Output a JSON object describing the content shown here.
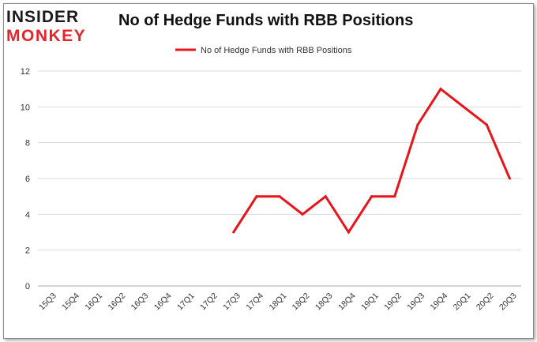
{
  "logo": {
    "line1": "INSIDER",
    "line2": "MONKEY",
    "color_dark": "#1a1a1a",
    "color_red": "#e8242b"
  },
  "chart_data": {
    "type": "line",
    "title": "No of Hedge Funds with RBB Positions",
    "categories": [
      "15Q3",
      "15Q4",
      "16Q1",
      "16Q2",
      "16Q3",
      "16Q4",
      "17Q1",
      "17Q2",
      "17Q3",
      "17Q4",
      "18Q1",
      "18Q2",
      "18Q3",
      "18Q4",
      "19Q1",
      "19Q2",
      "19Q3",
      "19Q4",
      "20Q1",
      "20Q2",
      "20Q3"
    ],
    "series": [
      {
        "name": "No of Hedge Funds with RBB Positions",
        "color": "#e8141b",
        "values": [
          null,
          null,
          null,
          null,
          null,
          null,
          null,
          null,
          3,
          5,
          5,
          4,
          5,
          3,
          5,
          5,
          9,
          11,
          10,
          9,
          6
        ]
      }
    ],
    "ylim": [
      0,
      12
    ],
    "yticks": [
      0,
      2,
      4,
      6,
      8,
      10,
      12
    ],
    "grid": true,
    "legend": "top-center",
    "xlabel": "",
    "ylabel": ""
  }
}
